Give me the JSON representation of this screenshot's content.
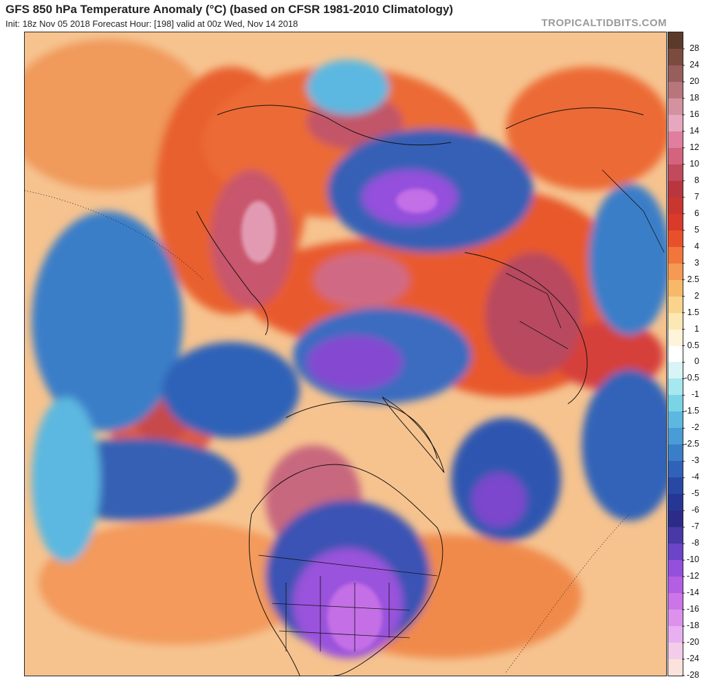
{
  "title": "GFS 850 hPa Temperature Anomaly (°C) (based on CFSR 1981-2010 Climatology)",
  "subtitle": "Init: 18z Nov 05 2018   Forecast Hour: [198]   valid at 00z Wed, Nov 14 2018",
  "source": "TROPICALTIDBITS.COM",
  "colorbar": {
    "labels": [
      "28",
      "24",
      "20",
      "18",
      "16",
      "14",
      "12",
      "10",
      "8",
      "7",
      "6",
      "5",
      "4",
      "3",
      "2.5",
      "2",
      "1.5",
      "1",
      "0.5",
      "0",
      "-0.5",
      "-1",
      "-1.5",
      "-2",
      "-2.5",
      "-3",
      "-4",
      "-5",
      "-6",
      "-7",
      "-8",
      "-10",
      "-12",
      "-14",
      "-16",
      "-18",
      "-20",
      "-24",
      "-28"
    ],
    "colors": [
      "#5c3a2a",
      "#7a4b3e",
      "#985e5c",
      "#b8767c",
      "#d4919f",
      "#e6a7bf",
      "#e07e9e",
      "#d4647e",
      "#c14a5c",
      "#b93640",
      "#c93630",
      "#da3a2a",
      "#e8502c",
      "#f0763c",
      "#f59a52",
      "#f7b86a",
      "#fad38c",
      "#fde8b4",
      "#fff4da",
      "#ffffff",
      "#d8f4f6",
      "#a6e8ef",
      "#7ad4e6",
      "#5cb8e0",
      "#4a9cd6",
      "#3a7ec8",
      "#2f62b8",
      "#2848a4",
      "#263694",
      "#2c2c88",
      "#4838a8",
      "#6c44c8",
      "#9450dc",
      "#b45ee4",
      "#cc74e8",
      "#dc92ec",
      "#e8b0f0",
      "#f2cce8",
      "#fbe2dc"
    ]
  }
}
